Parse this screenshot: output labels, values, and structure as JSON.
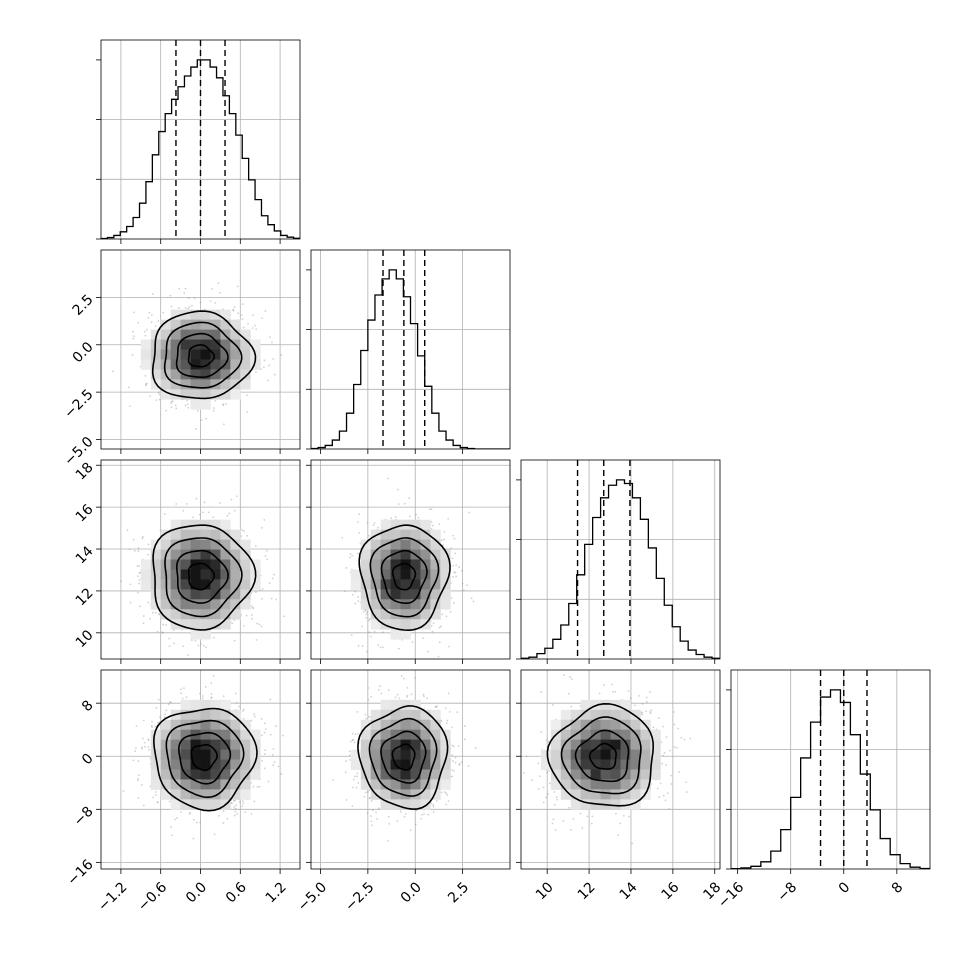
{
  "chart_data": {
    "type": "corner",
    "grid": true,
    "n_params": 4,
    "params": [
      {
        "range": [
          -1.5,
          1.5
        ],
        "ticks": [
          -1.2,
          -0.6,
          0.0,
          0.6,
          1.2
        ],
        "tick_labels": [
          "−1.2",
          "−0.6",
          "0.0",
          "0.6",
          "1.2"
        ],
        "quantiles": [
          -0.37,
          0.0,
          0.37
        ],
        "hist": [
          0.003,
          0.008,
          0.02,
          0.04,
          0.07,
          0.12,
          0.2,
          0.32,
          0.47,
          0.6,
          0.7,
          0.78,
          0.85,
          0.91,
          0.96,
          1.0,
          1.0,
          0.96,
          0.9,
          0.8,
          0.7,
          0.58,
          0.45,
          0.33,
          0.22,
          0.13,
          0.08,
          0.045,
          0.02,
          0.01,
          0.004
        ]
      },
      {
        "range": [
          -5.5,
          5.0
        ],
        "ticks": [
          -5.0,
          -2.5,
          0.0,
          2.5
        ],
        "tick_labels": [
          "−5.0",
          "−2.5",
          "0.0",
          "2.5"
        ],
        "quantiles": [
          -1.7,
          -0.6,
          0.5
        ],
        "hist": [
          0.003,
          0.008,
          0.02,
          0.05,
          0.1,
          0.2,
          0.36,
          0.55,
          0.72,
          0.86,
          0.95,
          1.0,
          0.95,
          0.85,
          0.7,
          0.52,
          0.35,
          0.2,
          0.1,
          0.05,
          0.02,
          0.008,
          0.003,
          0.0,
          0.0,
          0.0,
          0.0,
          0.0
        ]
      },
      {
        "range": [
          8.75,
          18.25
        ],
        "ticks": [
          10,
          12,
          14,
          16,
          18
        ],
        "tick_labels": [
          "10",
          "12",
          "14",
          "16",
          "18"
        ],
        "quantiles": [
          11.45,
          12.7,
          13.95
        ],
        "hist": [
          0.004,
          0.01,
          0.03,
          0.06,
          0.11,
          0.19,
          0.31,
          0.47,
          0.64,
          0.79,
          0.9,
          0.97,
          1.0,
          0.98,
          0.9,
          0.78,
          0.62,
          0.45,
          0.3,
          0.18,
          0.1,
          0.05,
          0.025,
          0.01,
          0.004
        ]
      },
      {
        "range": [
          -17.0,
          13.0
        ],
        "ticks": [
          -16,
          -8,
          0,
          8
        ],
        "tick_labels": [
          "−16",
          "−8",
          "0",
          "8"
        ],
        "quantiles": [
          -3.5,
          0.0,
          3.5
        ],
        "hist": [
          0.002,
          0.006,
          0.015,
          0.04,
          0.1,
          0.22,
          0.4,
          0.62,
          0.82,
          0.96,
          1.0,
          0.93,
          0.75,
          0.53,
          0.33,
          0.17,
          0.08,
          0.03,
          0.01,
          0.003
        ]
      }
    ],
    "joint": [
      {
        "row": 1,
        "col": 0,
        "center": [
          0.0,
          -0.6
        ],
        "sd": [
          0.38,
          1.15
        ],
        "rho": 0.0
      },
      {
        "row": 2,
        "col": 0,
        "center": [
          0.0,
          12.7
        ],
        "sd": [
          0.38,
          1.25
        ],
        "rho": 0.0
      },
      {
        "row": 2,
        "col": 1,
        "center": [
          -0.6,
          12.7
        ],
        "sd": [
          1.15,
          1.25
        ],
        "rho": 0.0
      },
      {
        "row": 3,
        "col": 0,
        "center": [
          0.05,
          -0.1
        ],
        "sd": [
          0.38,
          3.8
        ],
        "rho": 0.0
      },
      {
        "row": 3,
        "col": 1,
        "center": [
          -0.6,
          -0.1
        ],
        "sd": [
          1.15,
          3.8
        ],
        "rho": 0.0
      },
      {
        "row": 3,
        "col": 2,
        "center": [
          12.7,
          -0.1
        ],
        "sd": [
          1.25,
          3.8
        ],
        "rho": 0.0
      }
    ],
    "contour_levels_sigma": [
      0.5,
      1.0,
      1.5,
      2.0
    ],
    "contour_colors": "#000000",
    "quantile_line_style": "dashed"
  }
}
